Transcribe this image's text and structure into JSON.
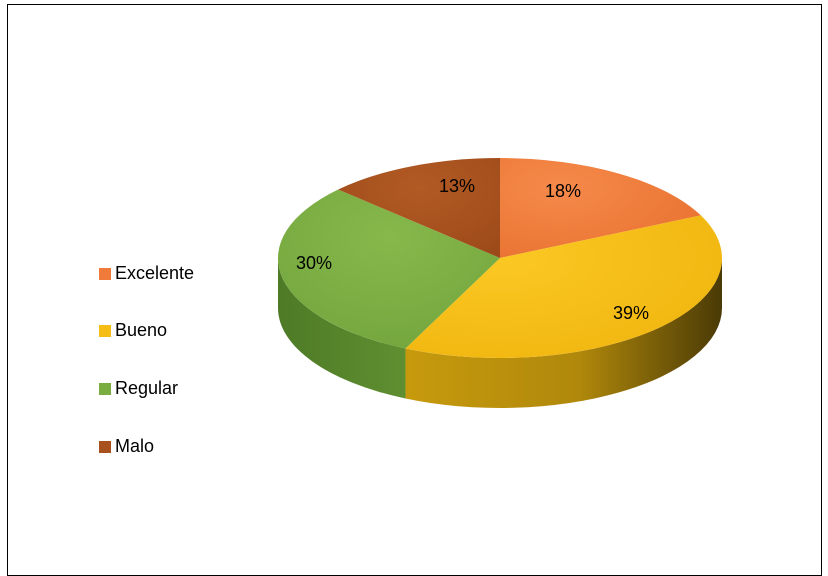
{
  "chart_data": {
    "type": "pie",
    "variant": "3d",
    "categories": [
      "Excelente",
      "Bueno",
      "Regular",
      "Malo"
    ],
    "values": [
      18,
      39,
      30,
      13
    ],
    "labels": [
      "18%",
      "39%",
      "30%",
      "13%"
    ],
    "colors": [
      "#f07a3a",
      "#f6be15",
      "#79ad41",
      "#a8501e"
    ],
    "legend_position": "left",
    "title": ""
  }
}
